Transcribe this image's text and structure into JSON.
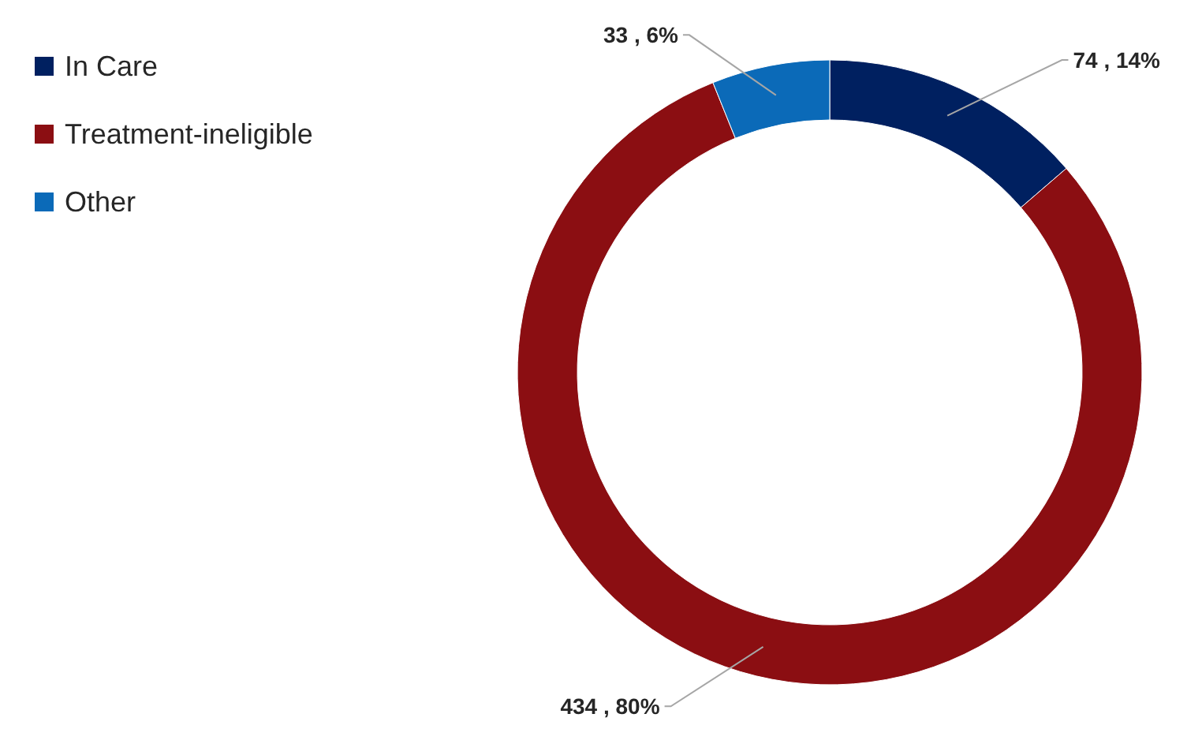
{
  "chart_data": {
    "type": "donut",
    "categories": [
      "In Care",
      "Treatment-ineligible",
      "Other"
    ],
    "values": [
      74,
      434,
      33
    ],
    "colors": [
      "#002060",
      "#8b0e12",
      "#0b6ab8"
    ],
    "value_labels": [
      "74 , 14%",
      "434 , 80%",
      "33 , 6%"
    ],
    "legend": "top left"
  }
}
